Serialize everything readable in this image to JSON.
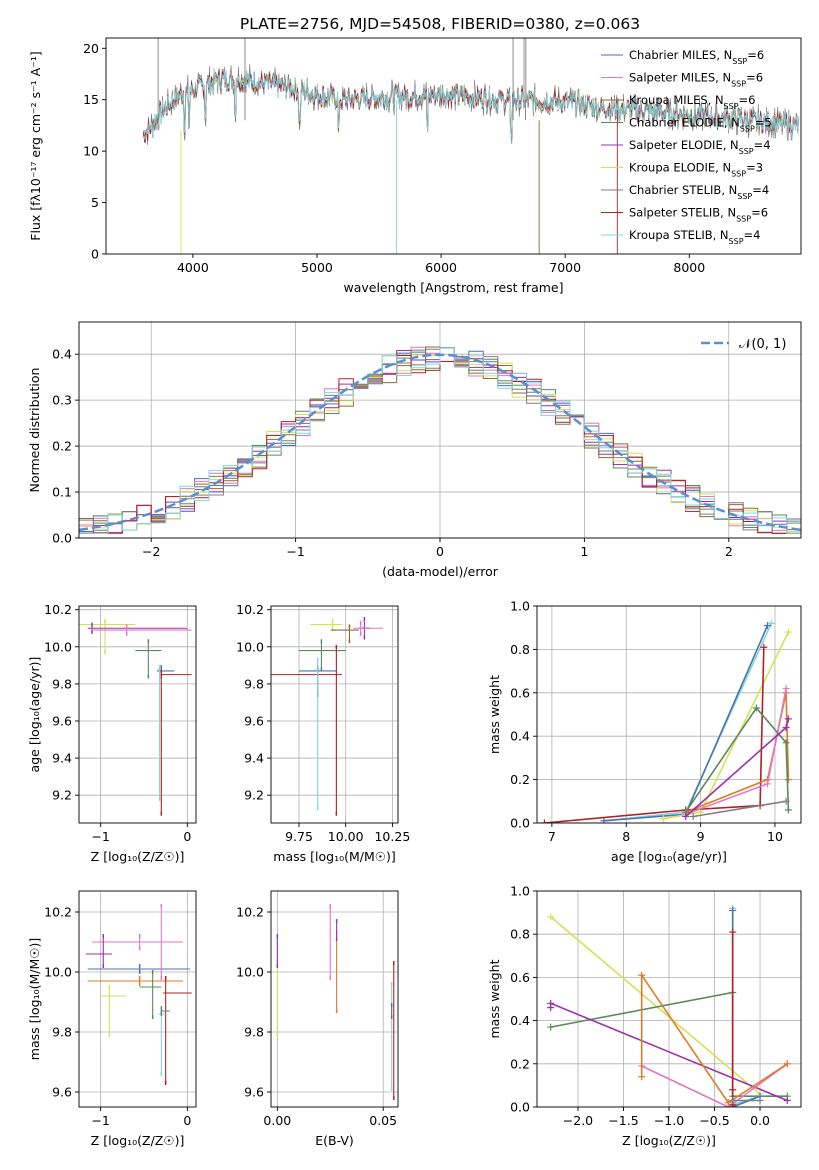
{
  "title": "PLATE=2756, MJD=54508, FIBERID=0380, z=0.063",
  "colors": {
    "chabrier_miles": "#4c72b0",
    "salpeter_miles": "#e377c2",
    "kroupa_miles": "#8c6d31",
    "chabrier_elodie": "#5b8a5b",
    "salpeter_elodie": "#9b30b0",
    "kroupa_elodie": "#d4e157",
    "chabrier_stelib": "#7f7f7f",
    "salpeter_stelib": "#b22222",
    "kroupa_stelib": "#7fd6df",
    "orange": "#e07b24",
    "gauss": "#5b8fd1"
  },
  "chart_data": [
    {
      "id": "spectrum",
      "type": "line",
      "xlabel": "wavelength [Angstrom, rest frame]",
      "ylabel": "Flux [fλ10⁻¹⁷ erg cm⁻² s⁻¹ A⁻¹]",
      "xlim": [
        3300,
        8900
      ],
      "ylim": [
        0,
        21
      ],
      "xticks": [
        4000,
        5000,
        6000,
        7000,
        8000
      ],
      "yticks": [
        0,
        5,
        10,
        15,
        20
      ],
      "legend_position": "top-right",
      "legend": [
        "Chabrier MILES, N_SSP=6",
        "Salpeter MILES, N_SSP=6",
        "Kroupa MILES, N_SSP=6",
        "Chabrier ELODIE, N_SSP=5",
        "Salpeter ELODIE, N_SSP=4",
        "Kroupa ELODIE, N_SSP=3",
        "Chabrier STELIB, N_SSP=4",
        "Salpeter STELIB, N_SSP=6",
        "Kroupa STELIB, N_SSP=4"
      ],
      "continuum": [
        [
          3600,
          11.5
        ],
        [
          3700,
          13
        ],
        [
          3800,
          14.5
        ],
        [
          3900,
          15.5
        ],
        [
          4000,
          16
        ],
        [
          4200,
          17
        ],
        [
          4400,
          17
        ],
        [
          4600,
          16.5
        ],
        [
          4800,
          16.2
        ],
        [
          5000,
          15.5
        ],
        [
          5200,
          15
        ],
        [
          5500,
          15.2
        ],
        [
          6000,
          15.5
        ],
        [
          6500,
          15
        ],
        [
          7000,
          14.8
        ],
        [
          7300,
          14.2
        ],
        [
          7600,
          14
        ],
        [
          8000,
          13.5
        ],
        [
          8500,
          13
        ],
        [
          8880,
          12.5
        ]
      ]
    },
    {
      "id": "residuals",
      "type": "step",
      "xlabel": "(data-model)/error",
      "ylabel": "Normed distribution",
      "xlim": [
        -2.5,
        2.5
      ],
      "ylim": [
        0,
        0.47
      ],
      "xticks": [
        -2,
        -1,
        0,
        1,
        2
      ],
      "yticks": [
        0.0,
        0.1,
        0.2,
        0.3,
        0.4
      ],
      "legend": [
        "𝒩(0, 1)"
      ],
      "gauss": {
        "mu": 0,
        "sigma": 1
      },
      "bin_width": 0.1,
      "bins_start": -2.5
    },
    {
      "id": "age-vs-Z",
      "type": "errorbar",
      "xlabel": "Z [log₁₀(Z/Z☉)]",
      "ylabel": "age  [log₁₀(age/yr)]",
      "xlim": [
        -1.25,
        0.1
      ],
      "ylim": [
        9.05,
        10.22
      ],
      "xticks": [
        -1,
        0
      ],
      "yticks": [
        9.2,
        9.4,
        9.6,
        9.8,
        10.0,
        10.2
      ],
      "points": [
        {
          "c": "kroupa_elodie",
          "x": -0.95,
          "xerr": [
            0.35,
            0.35
          ],
          "y": 10.12,
          "yerr": [
            0.15,
            0.02
          ]
        },
        {
          "c": "salpeter_elodie",
          "x": -1.1,
          "xerr": [
            0.05,
            1.1
          ],
          "y": 10.1,
          "yerr": [
            0.02,
            0.02
          ]
        },
        {
          "c": "salpeter_miles",
          "x": -0.7,
          "xerr": [
            0.4,
            0.75
          ],
          "y": 10.09,
          "yerr": [
            0.02,
            0.02
          ]
        },
        {
          "c": "chabrier_elodie",
          "x": -0.45,
          "xerr": [
            0.15,
            0.15
          ],
          "y": 9.98,
          "yerr": [
            0.14,
            0.05
          ]
        },
        {
          "c": "chabrier_miles",
          "x": -0.3,
          "xerr": [
            0.05,
            0.15
          ],
          "y": 9.87,
          "yerr": [
            0.03,
            0.02
          ]
        },
        {
          "c": "salpeter_stelib",
          "x": -0.3,
          "xerr": [
            0.01,
            0.35
          ],
          "y": 9.85,
          "yerr": [
            0.75,
            0.02
          ]
        },
        {
          "c": "kroupa_stelib",
          "x": -0.32,
          "xerr": [
            0.02,
            0.02
          ],
          "y": 9.88,
          "yerr": [
            0.7,
            0.01
          ]
        }
      ]
    },
    {
      "id": "age-vs-mass",
      "type": "errorbar",
      "xlabel": "mass [log₁₀(M/M☉)]",
      "ylabel": "",
      "xlim": [
        9.6,
        10.28
      ],
      "ylim": [
        9.05,
        10.22
      ],
      "xticks": [
        9.75,
        10.0,
        10.25
      ],
      "yticks": [
        9.2,
        9.4,
        9.6,
        9.8,
        10.0,
        10.2
      ],
      "points": [
        {
          "c": "kroupa_elodie",
          "x": 9.93,
          "xerr": [
            0.12,
            0.05
          ],
          "y": 10.12,
          "yerr": [
            0.02,
            0.02
          ]
        },
        {
          "c": "salpeter_elodie",
          "x": 10.1,
          "xerr": [
            0.03,
            0.03
          ],
          "y": 10.1,
          "yerr": [
            0.05,
            0.05
          ]
        },
        {
          "c": "salpeter_miles",
          "x": 10.08,
          "xerr": [
            0.04,
            0.12
          ],
          "y": 10.1,
          "yerr": [
            0.03,
            0.03
          ]
        },
        {
          "c": "kroupa_miles",
          "x": 10.02,
          "xerr": [
            0.1,
            0.05
          ],
          "y": 10.09,
          "yerr": [
            0.06,
            0.02
          ]
        },
        {
          "c": "chabrier_elodie",
          "x": 9.87,
          "xerr": [
            0.12,
            0.13
          ],
          "y": 9.98,
          "yerr": [
            0.1,
            0.05
          ]
        },
        {
          "c": "chabrier_miles",
          "x": 9.85,
          "xerr": [
            0.1,
            0.1
          ],
          "y": 9.87,
          "yerr": [
            0.13,
            0.02
          ]
        },
        {
          "c": "salpeter_stelib",
          "x": 9.95,
          "xerr": [
            0.35,
            0.03
          ],
          "y": 9.85,
          "yerr": [
            0.75,
            0.15
          ]
        },
        {
          "c": "kroupa_stelib",
          "x": 9.85,
          "xerr": [
            0.01,
            0.01
          ],
          "y": 9.88,
          "yerr": [
            0.75,
            0.05
          ]
        }
      ]
    },
    {
      "id": "mass-weight-vs-age",
      "type": "line",
      "xlabel": "age  [log₁₀(age/yr)]",
      "ylabel": "mass weight",
      "xlim": [
        6.8,
        10.35
      ],
      "ylim": [
        0,
        1.0
      ],
      "xticks": [
        7,
        8,
        9,
        10
      ],
      "yticks": [
        0.0,
        0.2,
        0.4,
        0.6,
        0.8,
        1.0
      ],
      "series": [
        {
          "c": "kroupa_stelib",
          "x": [
            7.7,
            8.8,
            9.95
          ],
          "y": [
            0.01,
            0.05,
            0.92
          ]
        },
        {
          "c": "chabrier_miles",
          "x": [
            7.7,
            8.8,
            9.9
          ],
          "y": [
            0.01,
            0.04,
            0.91
          ]
        },
        {
          "c": "kroupa_elodie",
          "x": [
            8.5,
            9.0,
            10.18
          ],
          "y": [
            0.02,
            0.05,
            0.88
          ]
        },
        {
          "c": "salpeter_stelib",
          "x": [
            6.9,
            8.8,
            9.8,
            9.85
          ],
          "y": [
            0.0,
            0.06,
            0.08,
            0.81
          ]
        },
        {
          "c": "orange",
          "x": [
            8.8,
            9.9,
            10.15,
            10.18
          ],
          "y": [
            0.05,
            0.2,
            0.6,
            0.2
          ]
        },
        {
          "c": "salpeter_miles",
          "x": [
            8.8,
            9.9,
            10.15
          ],
          "y": [
            0.04,
            0.18,
            0.62
          ]
        },
        {
          "c": "chabrier_elodie",
          "x": [
            8.8,
            9.75,
            10.15,
            10.18
          ],
          "y": [
            0.05,
            0.53,
            0.37,
            0.06
          ]
        },
        {
          "c": "salpeter_elodie",
          "x": [
            8.8,
            10.15,
            10.18
          ],
          "y": [
            0.03,
            0.44,
            0.48
          ]
        },
        {
          "c": "chabrier_stelib",
          "x": [
            8.9,
            10.15
          ],
          "y": [
            0.03,
            0.1
          ]
        }
      ]
    },
    {
      "id": "mass-vs-Z",
      "type": "errorbar",
      "xlabel": "Z [log₁₀(Z/Z☉)]",
      "ylabel": "mass [log₁₀(M/M☉)]",
      "xlim": [
        -1.25,
        0.1
      ],
      "ylim": [
        9.55,
        10.27
      ],
      "xticks": [
        -1,
        0
      ],
      "yticks": [
        9.6,
        9.8,
        10.0,
        10.2
      ],
      "points": [
        {
          "c": "salpeter_miles",
          "x": -0.55,
          "xerr": [
            0.55,
            0.5
          ],
          "y": 10.1,
          "yerr": [
            0.02,
            0.02
          ]
        },
        {
          "c": "salpeter_elodie",
          "x": -0.97,
          "xerr": [
            0.2,
            0.1
          ],
          "y": 10.06,
          "yerr": [
            0.04,
            0.06
          ]
        },
        {
          "c": "chabrier_miles",
          "x": -0.55,
          "xerr": [
            0.6,
            0.58
          ],
          "y": 10.01,
          "yerr": [
            0.01,
            0.01
          ]
        },
        {
          "c": "orange",
          "x": -0.55,
          "xerr": [
            0.6,
            0.5
          ],
          "y": 9.97,
          "yerr": [
            0.01,
            0.01
          ]
        },
        {
          "c": "kroupa_elodie",
          "x": -0.9,
          "xerr": [
            0.1,
            0.2
          ],
          "y": 9.92,
          "yerr": [
            0.13,
            0.03
          ]
        },
        {
          "c": "chabrier_elodie",
          "x": -0.4,
          "xerr": [
            0.15,
            0.1
          ],
          "y": 9.95,
          "yerr": [
            0.1,
            0.05
          ]
        },
        {
          "c": "salpeter_stelib",
          "x": -0.25,
          "xerr": [
            0.03,
            0.3
          ],
          "y": 9.93,
          "yerr": [
            0.3,
            0.05
          ]
        },
        {
          "c": "kroupa_stelib",
          "x": -0.3,
          "xerr": [
            0.03,
            0.05
          ],
          "y": 9.86,
          "yerr": [
            0.2,
            0.01
          ]
        },
        {
          "c": "chabrier_stelib",
          "x": -0.3,
          "xerr": [
            0.01,
            0.1
          ],
          "y": 9.87,
          "yerr": [
            0.01,
            0.01
          ]
        },
        {
          "c": "salpeter_miles",
          "x": -0.3,
          "xerr": [
            0.01,
            0.01
          ],
          "y": 10.1,
          "yerr": [
            0.12,
            0.12
          ]
        }
      ]
    },
    {
      "id": "mass-vs-EBV",
      "type": "errorbar",
      "xlabel": "E(B-V)",
      "ylabel": "",
      "xlim": [
        -0.003,
        0.057
      ],
      "ylim": [
        9.55,
        10.27
      ],
      "xticks": [
        0.0,
        0.05
      ],
      "yticks": [
        9.6,
        9.8,
        10.0,
        10.2
      ],
      "points": [
        {
          "c": "kroupa_elodie",
          "x": 0.0,
          "yerr": [
            0.13,
            0.12
          ],
          "y": 9.92
        },
        {
          "c": "salpeter_elodie",
          "x": 0.0,
          "yerr": [
            0.04,
            0.06
          ],
          "y": 10.06
        },
        {
          "c": "salpeter_miles",
          "x": 0.025,
          "yerr": [
            0.12,
            0.12
          ],
          "y": 10.1
        },
        {
          "c": "orange",
          "x": 0.028,
          "yerr": [
            0.1,
            0.16
          ],
          "y": 9.97
        },
        {
          "c": "salpeter_elodie",
          "x": 0.028,
          "yerr": [
            0.03,
            0.03
          ],
          "y": 10.14
        },
        {
          "c": "kroupa_stelib",
          "x": 0.054,
          "yerr": [
            0.25,
            0.1
          ],
          "y": 9.86
        },
        {
          "c": "salpeter_stelib",
          "x": 0.055,
          "yerr": [
            0.35,
            0.1
          ],
          "y": 9.93
        },
        {
          "c": "chabrier_miles",
          "x": 0.054,
          "yerr": [
            0.02,
            0.02
          ],
          "y": 9.87
        }
      ]
    },
    {
      "id": "mass-weight-vs-Z",
      "type": "line",
      "xlabel": "Z [log₁₀(Z/Z☉)]",
      "ylabel": "mass weight",
      "xlim": [
        -2.45,
        0.45
      ],
      "ylim": [
        0,
        1.0
      ],
      "xticks": [
        -2.0,
        -1.5,
        -1.0,
        -0.5,
        0.0
      ],
      "yticks": [
        0.0,
        0.2,
        0.4,
        0.6,
        0.8,
        1.0
      ],
      "series": [
        {
          "c": "kroupa_elodie",
          "x": [
            -2.3,
            0.0
          ],
          "y": [
            0.88,
            0.06
          ]
        },
        {
          "c": "chabrier_elodie",
          "x": [
            -2.3,
            -0.3,
            -0.3,
            0.3
          ],
          "y": [
            0.37,
            0.53,
            0.05,
            0.05
          ]
        },
        {
          "c": "salpeter_elodie",
          "x": [
            -2.3,
            -2.3,
            0.3
          ],
          "y": [
            0.46,
            0.48,
            0.03
          ]
        },
        {
          "c": "salpeter_miles",
          "x": [
            -1.3,
            -0.35,
            0.3
          ],
          "y": [
            0.19,
            0.0,
            0.2
          ]
        },
        {
          "c": "orange",
          "x": [
            -1.3,
            -1.3,
            -0.35,
            0.3
          ],
          "y": [
            0.14,
            0.61,
            0.02,
            0.2
          ]
        },
        {
          "c": "kroupa_stelib",
          "x": [
            -0.3,
            -0.3,
            0.0
          ],
          "y": [
            0.92,
            0.01,
            0.05
          ]
        },
        {
          "c": "chabrier_miles",
          "x": [
            -0.3,
            -0.3,
            0.0
          ],
          "y": [
            0.91,
            0.0,
            0.05
          ]
        },
        {
          "c": "salpeter_stelib",
          "x": [
            -0.3,
            -0.3,
            -0.3
          ],
          "y": [
            0.81,
            0.08,
            0.01
          ]
        },
        {
          "c": "chabrier_stelib",
          "x": [
            -0.3,
            0.0
          ],
          "y": [
            0.03,
            0.03
          ]
        }
      ]
    }
  ]
}
